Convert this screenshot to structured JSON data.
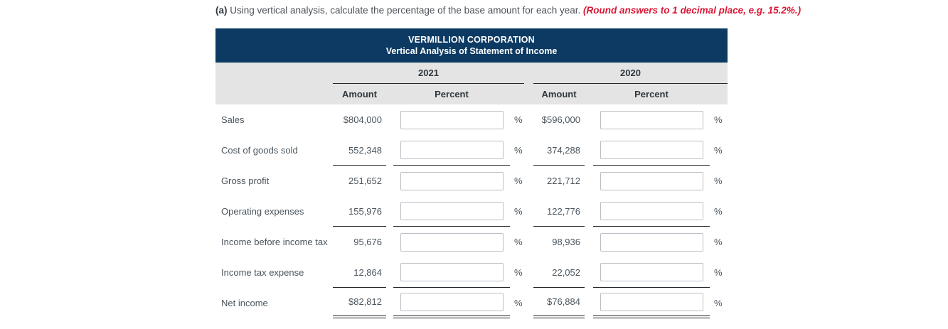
{
  "instruction": {
    "prefix": "(a)",
    "text": " Using vertical analysis, calculate the percentage of the base amount for each year. ",
    "note": "(Round answers to 1 decimal place, e.g. 15.2%.)"
  },
  "table": {
    "title": "VERMILLION CORPORATION",
    "subtitle": "Vertical Analysis of Statement of Income",
    "year_columns": [
      "2021",
      "2020"
    ],
    "sub_headers": [
      "Amount",
      "Percent"
    ],
    "percent_symbol": "%",
    "rows": [
      {
        "label": "Sales",
        "amount_2021": "$804,000",
        "percent_2021": "",
        "amount_2020": "$596,000",
        "percent_2020": ""
      },
      {
        "label": "Cost of goods sold",
        "amount_2021": "552,348",
        "percent_2021": "",
        "amount_2020": "374,288",
        "percent_2020": ""
      },
      {
        "label": "Gross profit",
        "amount_2021": "251,652",
        "percent_2021": "",
        "amount_2020": "221,712",
        "percent_2020": ""
      },
      {
        "label": "Operating expenses",
        "amount_2021": "155,976",
        "percent_2021": "",
        "amount_2020": "122,776",
        "percent_2020": ""
      },
      {
        "label": "Income before income tax",
        "amount_2021": "95,676",
        "percent_2021": "",
        "amount_2020": "98,936",
        "percent_2020": ""
      },
      {
        "label": "Income tax expense",
        "amount_2021": "12,864",
        "percent_2021": "",
        "amount_2020": "22,052",
        "percent_2020": ""
      },
      {
        "label": "Net income",
        "amount_2021": "$82,812",
        "percent_2021": "",
        "amount_2020": "$76,884",
        "percent_2020": ""
      }
    ]
  },
  "colors": {
    "header_bg": "#0c3a63",
    "header_text": "#ffffff",
    "subheader_bg": "#e4e4e4",
    "body_text": "#4a555e",
    "note_red": "#d91734",
    "rule": "#22262a",
    "input_border": "#b9bfc5"
  }
}
